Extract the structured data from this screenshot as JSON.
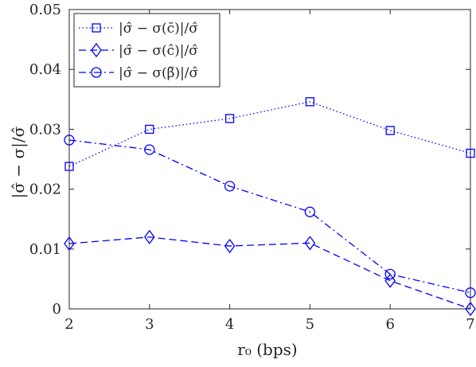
{
  "chart_data": {
    "type": "line",
    "xlabel": "r₀ (bps)",
    "ylabel": "|σ̂ − σ|/σ̂",
    "xlim": [
      2,
      7
    ],
    "ylim": [
      0,
      0.05
    ],
    "x_ticks": [
      "2",
      "3",
      "4",
      "5",
      "6",
      "7"
    ],
    "y_ticks": [
      "0",
      "0.01",
      "0.02",
      "0.03",
      "0.04",
      "0.05"
    ],
    "grid": false,
    "legend_position": "top-left",
    "x": [
      2,
      3,
      4,
      5,
      6,
      7
    ],
    "series": [
      {
        "name": "|σ̂ − σ(c̄)|/σ̂",
        "values": [
          0.0238,
          0.03,
          0.0318,
          0.0346,
          0.0298,
          0.026
        ],
        "marker": "square",
        "dash": "dotted",
        "color": "#0000ff"
      },
      {
        "name": "|σ̂ − σ(ĉ)|/σ̂",
        "values": [
          0.0109,
          0.012,
          0.0105,
          0.011,
          0.0047,
          0.0
        ],
        "marker": "diamond",
        "dash": "dashed",
        "color": "#0000ff"
      },
      {
        "name": "|σ̂ − σ(β̃)|/σ̂",
        "values": [
          0.0282,
          0.0266,
          0.0205,
          0.0162,
          0.0058,
          0.0027
        ],
        "marker": "circle",
        "dash": "dashdot",
        "color": "#0000ff"
      }
    ]
  }
}
